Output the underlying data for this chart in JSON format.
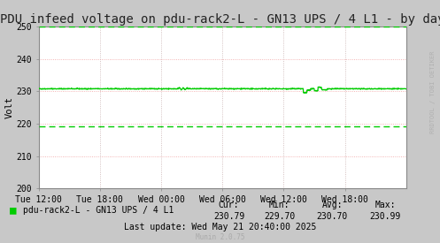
{
  "title": "PDU infeed voltage on pdu-rack2-L - GN13 UPS / 4 L1 - by day",
  "ylabel": "Volt",
  "ylim": [
    200,
    250
  ],
  "yticks": [
    200,
    210,
    220,
    230,
    240,
    250
  ],
  "bg_color": "#c8c8c8",
  "plot_bg_color": "#ffffff",
  "grid_color": "#f0a0a0",
  "grid_color_v": "#c8b0b0",
  "line_color": "#00cc00",
  "dashed_line_value": 219.2,
  "upper_dashed_value": 250.0,
  "main_line_base": 230.8,
  "legend_label": "pdu-rack2-L - GN13 UPS / 4 L1",
  "cur": "230.79",
  "min_val": "229.70",
  "avg": "230.70",
  "max_val": "230.99",
  "last_update": "Last update: Wed May 21 20:40:00 2025",
  "munin_version": "Munin 2.0.75",
  "xtick_labels": [
    "Tue 12:00",
    "Tue 18:00",
    "Wed 00:00",
    "Wed 06:00",
    "Wed 12:00",
    "Wed 18:00"
  ],
  "watermark": "RRDTOOL / TOBI OETIKER",
  "title_fontsize": 10,
  "axis_fontsize": 7.5,
  "legend_fontsize": 7.5
}
